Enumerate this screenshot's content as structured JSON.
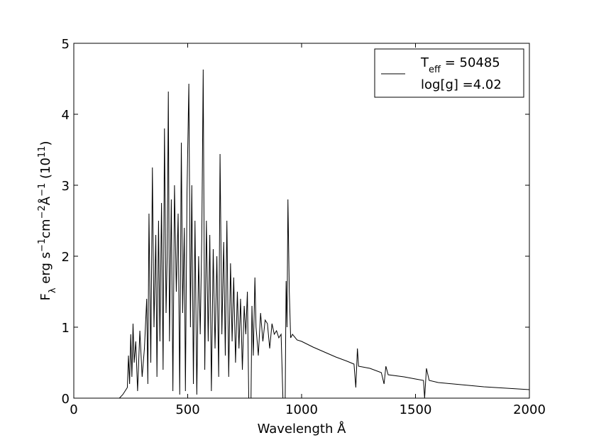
{
  "chart_data": {
    "type": "line",
    "xlabel": "Wavelength Å",
    "ylabel": [
      {
        "text": "F"
      },
      {
        "text": "λ",
        "shift": "sub"
      },
      {
        "text": " erg s"
      },
      {
        "text": "−1",
        "shift": "super"
      },
      {
        "text": "cm"
      },
      {
        "text": "−2",
        "shift": "super"
      },
      {
        "text": "Å"
      },
      {
        "text": "−1",
        "shift": "super"
      },
      {
        "text": " (10"
      },
      {
        "text": "11",
        "shift": "super"
      },
      {
        "text": ")"
      }
    ],
    "legend_label": [
      {
        "text": "T"
      },
      {
        "text": "eff",
        "shift": "sub"
      },
      {
        "text": " = 50485"
      }
    ],
    "legend_label_2": "log[g] =4.02",
    "legend": "upper right",
    "x": [
      200,
      215,
      225,
      235,
      240,
      245,
      250,
      255,
      260,
      265,
      272,
      280,
      290,
      300,
      310,
      320,
      325,
      330,
      338,
      345,
      352,
      360,
      365,
      372,
      378,
      385,
      392,
      398,
      405,
      410,
      415,
      420,
      428,
      435,
      442,
      450,
      458,
      465,
      472,
      478,
      485,
      490,
      497,
      505,
      512,
      518,
      525,
      532,
      540,
      548,
      555,
      562,
      568,
      575,
      582,
      590,
      597,
      604,
      612,
      620,
      628,
      636,
      642,
      650,
      658,
      665,
      672,
      680,
      688,
      695,
      702,
      710,
      718,
      725,
      732,
      740,
      748,
      755,
      762,
      768,
      778,
      782,
      788,
      795,
      800,
      810,
      820,
      830,
      840,
      850,
      860,
      870,
      880,
      890,
      900,
      910,
      918,
      928,
      932,
      936,
      940,
      946,
      952,
      960,
      980,
      1000,
      1050,
      1100,
      1150,
      1200,
      1230,
      1238,
      1245,
      1250,
      1300,
      1350,
      1362,
      1370,
      1380,
      1450,
      1500,
      1535,
      1540,
      1548,
      1560,
      1600,
      1700,
      1800,
      1900,
      2000
    ],
    "series": [
      {
        "color": "#000000",
        "values": [
          0,
          0.05,
          0.1,
          0.15,
          0.6,
          0.2,
          0.9,
          0.3,
          1.05,
          0.5,
          0.8,
          0.1,
          0.95,
          0.3,
          0.7,
          1.4,
          0.2,
          2.6,
          0.5,
          3.25,
          1.0,
          2.3,
          0.3,
          2.5,
          0.8,
          2.75,
          0.4,
          3.8,
          1.2,
          2.0,
          4.32,
          0.8,
          2.8,
          0.1,
          3.0,
          1.5,
          2.6,
          0.05,
          3.6,
          1.2,
          2.4,
          0.1,
          2.9,
          4.43,
          1.0,
          3.0,
          0.2,
          2.5,
          0.05,
          2.0,
          0.9,
          2.3,
          4.63,
          0.4,
          2.5,
          0.8,
          2.3,
          0.1,
          2.1,
          0.7,
          2.0,
          0.3,
          3.44,
          0.9,
          2.2,
          0.6,
          2.5,
          0.3,
          1.9,
          0.8,
          1.7,
          0.5,
          1.5,
          0.7,
          1.4,
          0.4,
          1.3,
          0.9,
          1.5,
          0,
          0,
          1.3,
          0.6,
          1.7,
          1.0,
          0.6,
          1.2,
          0.8,
          1.1,
          1.05,
          0.7,
          1.05,
          0.9,
          0.95,
          0.85,
          0.9,
          0,
          0,
          1.65,
          1.0,
          2.8,
          1.5,
          0.85,
          0.9,
          0.82,
          0.8,
          0.72,
          0.65,
          0.58,
          0.52,
          0.48,
          0.15,
          0.7,
          0.45,
          0.42,
          0.36,
          0.2,
          0.45,
          0.33,
          0.3,
          0.27,
          0.25,
          0,
          0.42,
          0.25,
          0.22,
          0.19,
          0.16,
          0.14,
          0.12
        ]
      }
    ],
    "xlim": [
      0,
      2000
    ],
    "xticks": [
      0,
      500,
      1000,
      1500,
      2000
    ],
    "ylim": [
      0,
      5
    ],
    "yticks": [
      0,
      1,
      2,
      3,
      4,
      5
    ],
    "grid": false
  }
}
